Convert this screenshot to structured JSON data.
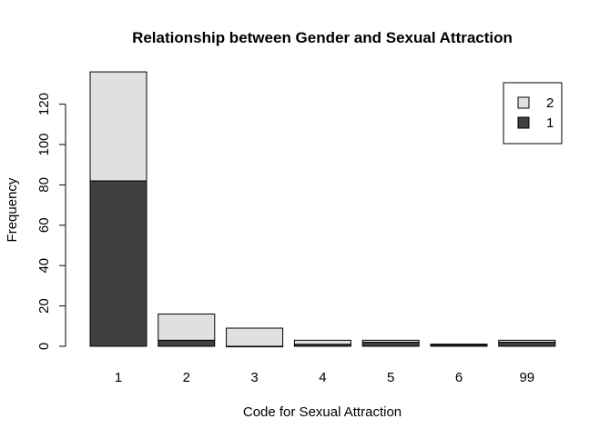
{
  "chart_data": {
    "type": "bar",
    "stacked": true,
    "title": "Relationship between Gender and Sexual Attraction",
    "xlabel": "Code for Sexual Attraction",
    "ylabel": "Frequency",
    "categories": [
      "1",
      "2",
      "3",
      "4",
      "5",
      "6",
      "99"
    ],
    "series": [
      {
        "name": "1",
        "values": [
          82,
          3,
          0,
          1,
          2,
          1,
          2
        ],
        "color": "#404040"
      },
      {
        "name": "2",
        "values": [
          54,
          13,
          9,
          2,
          1,
          0,
          1
        ],
        "color": "#e0e0e0"
      }
    ],
    "ylim": [
      0,
      137
    ],
    "yticks": [
      0,
      20,
      40,
      60,
      80,
      100,
      120
    ],
    "legend": {
      "position": "top-right",
      "order": [
        "2",
        "1"
      ]
    },
    "grid": false
  }
}
